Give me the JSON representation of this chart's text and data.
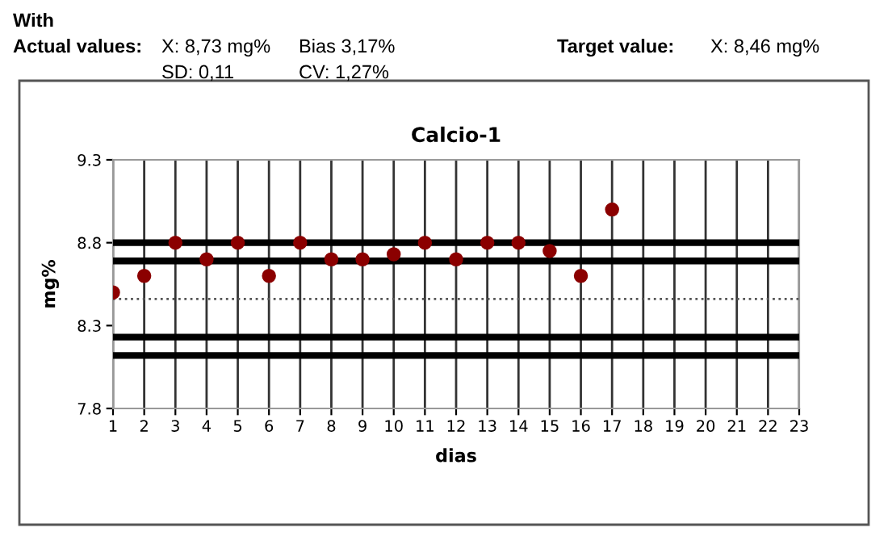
{
  "chart_data": {
    "type": "scatter",
    "title": "Calcio-1",
    "xlabel": "dias",
    "ylabel": "mg%",
    "annotations": [
      "With",
      "Actual values:",
      "X: 8,73 mg%",
      "Bias 3,17%",
      "SD: 0,11",
      "CV: 1,27%",
      "Target value:",
      "X: 8,46 mg%"
    ],
    "x": [
      1,
      2,
      3,
      4,
      5,
      6,
      7,
      8,
      9,
      10,
      11,
      12,
      13,
      14,
      15,
      16,
      17
    ],
    "series": [
      {
        "color": "#8b0000",
        "values": [
          8.5,
          8.6,
          8.8,
          8.7,
          8.8,
          8.6,
          8.8,
          8.7,
          8.7,
          8.73,
          8.8,
          8.7,
          8.8,
          8.8,
          8.75,
          8.6,
          9.0
        ]
      }
    ],
    "marker": "circle",
    "xlim": [
      1,
      23
    ],
    "xticks": [
      1,
      2,
      3,
      4,
      5,
      6,
      7,
      8,
      9,
      10,
      11,
      12,
      13,
      14,
      15,
      16,
      17,
      18,
      19,
      20,
      21,
      22,
      23
    ],
    "ylim": [
      7.8,
      9.3
    ],
    "yticks": [
      7.8,
      8.3,
      8.8,
      9.3
    ],
    "grid": "x",
    "ref_lines": [
      {
        "axis": "y",
        "value": 8.8,
        "color": "#000000",
        "line_style": "solid"
      },
      {
        "axis": "y",
        "value": 8.69,
        "color": "#000000",
        "line_style": "solid"
      },
      {
        "axis": "y",
        "value": 8.46,
        "color": "#555555",
        "line_style": "dotted"
      },
      {
        "axis": "y",
        "value": 8.23,
        "color": "#000000",
        "line_style": "solid"
      },
      {
        "axis": "y",
        "value": 8.12,
        "color": "#000000",
        "line_style": "solid"
      }
    ]
  }
}
